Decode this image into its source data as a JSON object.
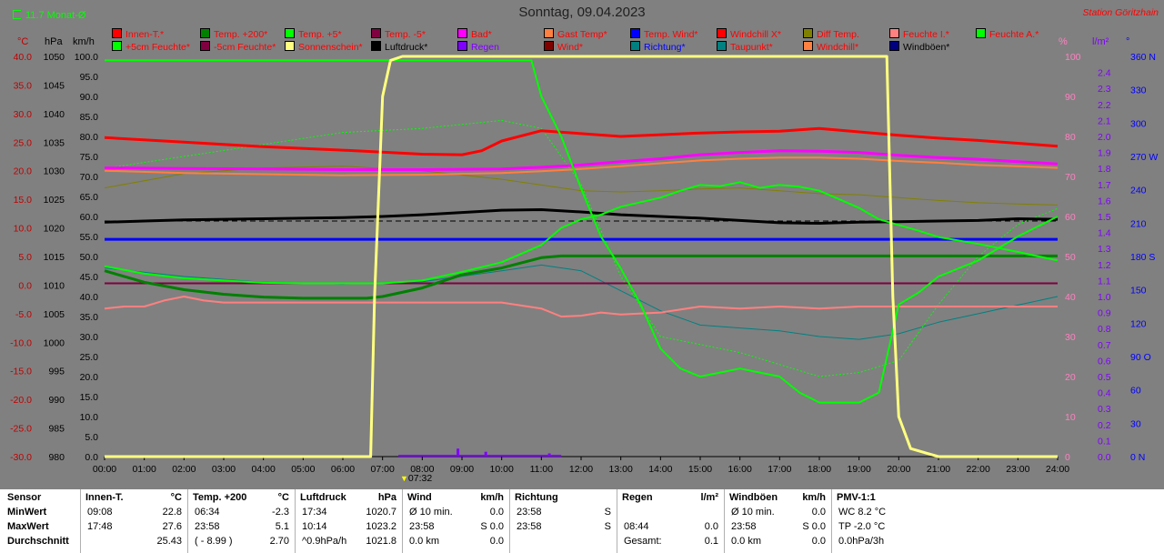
{
  "header": {
    "title": "Sonntag, 09.04.2023",
    "station": "Station Göritzhain",
    "monthly_avg": "11.7 Monat-Ø",
    "time_marker": "07:32"
  },
  "units": {
    "celsius": "°C",
    "hpa": "hPa",
    "kmh": "km/h",
    "percent": "%",
    "rain": "l/m²",
    "degree": "°"
  },
  "colors": {
    "background": "#808080",
    "red": "#ff0000",
    "dark_green": "#008000",
    "green": "#00ff00",
    "maroon": "#800040",
    "magenta": "#ff00ff",
    "orange": "#ff8040",
    "blue": "#0000ff",
    "olive": "#808000",
    "pink": "#ff8080",
    "yellow_sun": "#ffff80",
    "black": "#000000",
    "purple": "#8000ff",
    "teal": "#008080",
    "dark_red": "#800000",
    "navy": "#000080"
  },
  "legend": [
    {
      "label": "Innen-T.*",
      "color": "#ff0000",
      "text_color": "#ff0000"
    },
    {
      "label": "Temp. +200*",
      "color": "#008000",
      "text_color": "#ff0000"
    },
    {
      "label": "Temp. +5*",
      "color": "#00ff00",
      "text_color": "#ff0000"
    },
    {
      "label": "Temp. -5*",
      "color": "#800040",
      "text_color": "#ff0000"
    },
    {
      "label": "Bad*",
      "color": "#ff00ff",
      "text_color": "#ff0000"
    },
    {
      "label": "Gast Temp*",
      "color": "#ff8040",
      "text_color": "#ff0000"
    },
    {
      "label": "Temp. Wind*",
      "color": "#0000ff",
      "text_color": "#ff0000"
    },
    {
      "label": "Windchill X*",
      "color": "#ff0000",
      "text_color": "#ff0000"
    },
    {
      "label": "Diff Temp.",
      "color": "#808000",
      "text_color": "#ff0000"
    },
    {
      "label": "Feuchte I.*",
      "color": "#ff8080",
      "text_color": "#ff0000"
    },
    {
      "label": "Feuchte A.*",
      "color": "#00ff00",
      "text_color": "#ff0000"
    },
    {
      "label": "+5cm Feuchte*",
      "color": "#00ff00",
      "text_color": "#ff0000"
    },
    {
      "label": "-5cm Feuchte*",
      "color": "#800040",
      "text_color": "#ff0000"
    },
    {
      "label": "Sonnenschein*",
      "color": "#ffff80",
      "text_color": "#ff0000"
    },
    {
      "label": "Luftdruck*",
      "color": "#000000",
      "text_color": "#000000"
    },
    {
      "label": "Regen",
      "color": "#8000ff",
      "text_color": "#8000ff"
    },
    {
      "label": "Wind*",
      "color": "#800000",
      "text_color": "#ff0000"
    },
    {
      "label": "Richtung*",
      "color": "#008080",
      "text_color": "#0000ff"
    },
    {
      "label": "Taupunkt*",
      "color": "#008080",
      "text_color": "#ff0000"
    },
    {
      "label": "Windchill*",
      "color": "#ff8040",
      "text_color": "#ff0000"
    },
    {
      "label": "Windböen*",
      "color": "#000080",
      "text_color": "#000000"
    }
  ],
  "chart_data": {
    "type": "line",
    "title": "Sonntag, 09.04.2023",
    "x_ticks": [
      "00:00",
      "01:00",
      "02:00",
      "03:00",
      "04:00",
      "05:00",
      "06:00",
      "07:00",
      "08:00",
      "09:00",
      "10:00",
      "11:00",
      "12:00",
      "13:00",
      "14:00",
      "15:00",
      "16:00",
      "17:00",
      "18:00",
      "19:00",
      "20:00",
      "21:00",
      "22:00",
      "23:00",
      "24:00"
    ],
    "xlim": [
      0,
      24
    ],
    "axes": {
      "temp_c": {
        "label": "°C",
        "range": [
          -30,
          40
        ],
        "ticks": [
          "40.0",
          "35.0",
          "30.0",
          "25.0",
          "20.0",
          "15.0",
          "10.0",
          "5.0",
          "0.0",
          "-5.0",
          "-10.0",
          "-15.0",
          "-20.0",
          "-25.0",
          "-30.0"
        ]
      },
      "pressure_hpa": {
        "label": "hPa",
        "range": [
          980,
          1050
        ],
        "ticks": [
          "1050",
          "1045",
          "1040",
          "1035",
          "1030",
          "1025",
          "1020",
          "1015",
          "1010",
          "1005",
          "1000",
          "995",
          "990",
          "985",
          "980"
        ]
      },
      "wind_kmh": {
        "label": "km/h",
        "range": [
          0,
          100
        ],
        "ticks": [
          "100.0",
          "95.0",
          "90.0",
          "85.0",
          "80.0",
          "75.0",
          "70.0",
          "65.0",
          "60.0",
          "55.0",
          "50.0",
          "45.0",
          "40.0",
          "35.0",
          "30.0",
          "25.0",
          "20.0",
          "15.0",
          "10.0",
          "5.0",
          "0.0"
        ]
      },
      "humidity_pct": {
        "label": "%",
        "range": [
          0,
          100
        ],
        "ticks": [
          "100",
          "90",
          "80",
          "70",
          "60",
          "50",
          "40",
          "30",
          "20",
          "10",
          "0"
        ]
      },
      "rain_lm2": {
        "label": "l/m²",
        "range": [
          0,
          2.5
        ],
        "ticks": [
          "2.4",
          "2.3",
          "2.2",
          "2.1",
          "2.0",
          "1.9",
          "1.8",
          "1.7",
          "1.6",
          "1.5",
          "1.4",
          "1.3",
          "1.2",
          "1.1",
          "1.0",
          "0.9",
          "0.8",
          "0.7",
          "0.6",
          "0.5",
          "0.4",
          "0.3",
          "0.2",
          "0.1",
          "0.0"
        ]
      },
      "direction_deg": {
        "label": "°",
        "range": [
          0,
          360
        ],
        "ticks": [
          "360 N",
          "330",
          "300",
          "270 W",
          "240",
          "210",
          "180 S",
          "150",
          "120",
          "90 O",
          "60",
          "30",
          "0 N"
        ]
      }
    },
    "series": [
      {
        "name": "Innen-T.*",
        "axis": "temp_c",
        "color": "#ff0000",
        "width": 3,
        "x": [
          0,
          2,
          4,
          6,
          8,
          9,
          9.5,
          10,
          11,
          12,
          13,
          14,
          15,
          16,
          17,
          18,
          19,
          20,
          21,
          22,
          23,
          24
        ],
        "y": [
          25.8,
          25.0,
          24.2,
          23.6,
          22.9,
          22.8,
          23.5,
          25.2,
          27.0,
          26.5,
          26.0,
          26.3,
          26.6,
          26.8,
          26.9,
          27.4,
          26.8,
          26.2,
          25.7,
          25.3,
          24.8,
          24.3
        ]
      },
      {
        "name": "Temp. +200*",
        "axis": "temp_c",
        "color": "#008000",
        "width": 3,
        "x": [
          0,
          1,
          2,
          3,
          4,
          5,
          6,
          6.6,
          7,
          8,
          9,
          10,
          11,
          11.5,
          12,
          24
        ],
        "y": [
          2.5,
          0.5,
          -0.8,
          -1.6,
          -2.1,
          -2.3,
          -2.3,
          -2.3,
          -2.0,
          -0.5,
          1.8,
          3.0,
          4.8,
          5.1,
          5.1,
          5.1
        ]
      },
      {
        "name": "Temp. +5*",
        "axis": "temp_c",
        "color": "#00ff00",
        "width": 2,
        "x": [
          0,
          1,
          2,
          3,
          4,
          5,
          6,
          7,
          8,
          9,
          10,
          11,
          11.5,
          12,
          12.5,
          13,
          13.5,
          14,
          14.5,
          15,
          15.5,
          16,
          16.5,
          17,
          17.5,
          18,
          18.5,
          19,
          19.5,
          20,
          20.5,
          21,
          22,
          23,
          24
        ],
        "y": [
          3.3,
          2.0,
          1.2,
          0.8,
          0.4,
          0.3,
          0.3,
          0.3,
          0.8,
          2.3,
          4.0,
          7.0,
          10.0,
          11.5,
          12.3,
          13.7,
          14.5,
          15.3,
          16.5,
          17.5,
          17.3,
          18.0,
          17.0,
          17.5,
          17.2,
          16.5,
          15.0,
          13.5,
          11.5,
          10.5,
          9.5,
          8.4,
          7.2,
          5.8,
          4.3
        ]
      },
      {
        "name": "Temp. -5*",
        "axis": "temp_c",
        "color": "#800040",
        "width": 2,
        "x": [
          0,
          24
        ],
        "y": [
          0.3,
          0.3
        ]
      },
      {
        "name": "Bad*",
        "axis": "temp_c",
        "color": "#ff00ff",
        "width": 3,
        "x": [
          0,
          2,
          4,
          6,
          8,
          10,
          11,
          12,
          13,
          14,
          15,
          16,
          17,
          18,
          19,
          20,
          21,
          22,
          23,
          24
        ],
        "y": [
          20.5,
          20.4,
          20.3,
          20.2,
          20.2,
          20.3,
          20.6,
          21.0,
          21.6,
          22.1,
          22.8,
          23.2,
          23.5,
          23.4,
          23.2,
          22.7,
          22.3,
          22.0,
          21.6,
          21.2
        ]
      },
      {
        "name": "Gast Temp*",
        "axis": "temp_c",
        "color": "#ff8040",
        "width": 2,
        "x": [
          0,
          2,
          4,
          6,
          8,
          10,
          11,
          12,
          13,
          14,
          15,
          16,
          17,
          18,
          19,
          20,
          21,
          22,
          23,
          24
        ],
        "y": [
          20.0,
          19.6,
          19.4,
          19.2,
          19.3,
          19.6,
          19.9,
          20.3,
          20.8,
          21.3,
          21.8,
          22.1,
          22.3,
          22.3,
          22.1,
          21.7,
          21.4,
          21.0,
          20.8,
          20.5
        ]
      },
      {
        "name": "Temp. Wind*",
        "axis": "temp_c",
        "color": "#0000ff",
        "width": 3,
        "x": [
          0,
          24
        ],
        "y": [
          8.0,
          8.0
        ]
      },
      {
        "name": "Diff Temp.",
        "axis": "temp_c",
        "color": "#808000",
        "width": 1,
        "x": [
          0,
          2,
          4,
          6,
          8,
          10,
          11,
          12,
          13,
          14,
          15,
          16,
          17,
          18,
          19,
          20,
          21,
          22,
          23,
          24
        ],
        "y": [
          17.0,
          19.5,
          20.5,
          20.8,
          20.0,
          18.5,
          17.5,
          16.5,
          16.3,
          16.5,
          16.8,
          17.0,
          16.5,
          16.0,
          15.8,
          15.3,
          14.8,
          14.4,
          14.2,
          14.0
        ]
      },
      {
        "name": "Feuchte I.*",
        "axis": "humidity_pct",
        "color": "#ff8080",
        "width": 2,
        "x": [
          0,
          0.5,
          1,
          1.5,
          2,
          2.5,
          3,
          5,
          7,
          9,
          10,
          11,
          11.5,
          12,
          12.5,
          13,
          14,
          15,
          16,
          17,
          18,
          19,
          20,
          21,
          22,
          23,
          24
        ],
        "y": [
          37,
          37.5,
          37.5,
          39,
          40,
          39,
          38.5,
          38.5,
          38.5,
          38.5,
          38.5,
          37,
          35,
          35.2,
          36,
          35.5,
          36,
          37.5,
          37,
          37.5,
          37,
          37.5,
          37.5,
          37.5,
          37.5,
          37.5,
          37.5
        ]
      },
      {
        "name": "Feuchte A.*",
        "axis": "humidity_pct",
        "color": "#00ff00",
        "width": 2,
        "x": [
          0,
          6,
          7,
          8,
          9,
          10,
          10.75,
          11,
          11.5,
          12,
          12.5,
          13,
          13.5,
          14,
          14.5,
          15,
          15.5,
          16,
          16.5,
          17,
          17.5,
          18,
          18.5,
          19,
          19.5,
          20,
          20.5,
          21,
          22,
          23,
          24
        ],
        "y": [
          99,
          99,
          99,
          99,
          99,
          99,
          99,
          90,
          80,
          67,
          55,
          47,
          38,
          27,
          22,
          20,
          21,
          22,
          21,
          20,
          16,
          13.5,
          13.5,
          13.5,
          16,
          38,
          41,
          45,
          49,
          55,
          60
        ]
      },
      {
        "name": "+5cm Feuchte*",
        "axis": "humidity_pct",
        "color": "#00ff00",
        "width": 1,
        "dash": "2,2",
        "x": [
          0,
          2,
          4,
          6,
          8,
          9,
          10,
          11,
          12,
          13,
          14,
          15,
          16,
          17,
          18,
          19,
          20,
          21,
          22,
          23,
          24
        ],
        "y": [
          72,
          75,
          78,
          81,
          82,
          83,
          84,
          82,
          68,
          45,
          30,
          28,
          26,
          23,
          20,
          21,
          24,
          38,
          50,
          58,
          62
        ]
      },
      {
        "name": "Taupunkt*",
        "axis": "temp_c",
        "color": "#008080",
        "width": 1,
        "x": [
          0,
          2,
          4,
          6,
          8,
          10,
          11,
          12,
          13,
          14,
          15,
          16,
          17,
          18,
          19,
          20,
          21,
          22,
          23,
          24
        ],
        "y": [
          3.0,
          1.5,
          0.5,
          0.2,
          0.6,
          2.5,
          3.5,
          2.5,
          -1.0,
          -4.5,
          -7.0,
          -7.5,
          -8.0,
          -9.0,
          -9.5,
          -8.5,
          -6.5,
          -5.0,
          -3.5,
          -2.0
        ]
      },
      {
        "name": "Luftdruck*",
        "axis": "pressure_hpa",
        "color": "#000000",
        "width": 3,
        "x": [
          0,
          1,
          2,
          3,
          4,
          5,
          6,
          7,
          8,
          9,
          10,
          11,
          12,
          13,
          14,
          15,
          16,
          17,
          18,
          19,
          20,
          21,
          22,
          23,
          24
        ],
        "y": [
          1021.0,
          1021.2,
          1021.4,
          1021.5,
          1021.6,
          1021.7,
          1021.8,
          1022.0,
          1022.3,
          1022.7,
          1023.1,
          1023.2,
          1022.8,
          1022.3,
          1022.0,
          1021.7,
          1021.3,
          1020.9,
          1020.8,
          1021.0,
          1021.1,
          1021.2,
          1021.3,
          1021.6,
          1021.5
        ]
      },
      {
        "name": "Sonnenschein*",
        "axis": "humidity_pct",
        "color": "#ffff80",
        "width": 3,
        "x": [
          0,
          6.7,
          6.8,
          7.0,
          7.2,
          7.5,
          19.7,
          19.85,
          20.0,
          20.3,
          21,
          24
        ],
        "y": [
          0,
          0,
          40,
          90,
          99,
          100,
          100,
          40,
          10,
          2,
          0,
          0
        ]
      },
      {
        "name": "Regen",
        "axis": "rain_lm2",
        "color": "#8000ff",
        "type": "bar",
        "x": [
          8.9,
          9.6,
          11.2
        ],
        "y": [
          0.05,
          0.03,
          0.02
        ]
      }
    ],
    "reference_lines": [
      {
        "axis": "pressure_hpa",
        "value": 1021.2,
        "dash": "6,4",
        "color": "#000000"
      }
    ]
  },
  "stats": {
    "row_labels": [
      "Sensor",
      "MinWert",
      "MaxWert",
      "Durchschnitt"
    ],
    "columns": [
      {
        "title": "Innen-T.",
        "unit": "°C",
        "rows": [
          [
            "09:08",
            "22.8"
          ],
          [
            "17:48",
            "27.6"
          ],
          [
            "",
            "25.43"
          ]
        ]
      },
      {
        "title": "Temp. +200",
        "unit": "°C",
        "rows": [
          [
            "06:34",
            "-2.3"
          ],
          [
            "23:58",
            "5.1"
          ],
          [
            "( - 8.99 )",
            "2.70"
          ]
        ]
      },
      {
        "title": "Luftdruck",
        "unit": "hPa",
        "rows": [
          [
            "17:34",
            "1020.7"
          ],
          [
            "10:14",
            "1023.2"
          ],
          [
            "^0.9hPa/h",
            "1021.8"
          ]
        ]
      },
      {
        "title": "Wind",
        "unit": "km/h",
        "rows": [
          [
            "Ø 10 min.",
            "0.0"
          ],
          [
            "23:58",
            "S 0.0"
          ],
          [
            "0.0 km",
            "0.0"
          ]
        ]
      },
      {
        "title": "Richtung",
        "unit": "",
        "rows": [
          [
            "23:58",
            "S"
          ],
          [
            "23:58",
            "S"
          ],
          [
            "",
            ""
          ]
        ]
      },
      {
        "title": "Regen",
        "unit": "l/m²",
        "rows": [
          [
            "",
            ""
          ],
          [
            "08:44",
            "0.0"
          ],
          [
            "Gesamt:",
            "0.1"
          ]
        ]
      },
      {
        "title": "Windböen",
        "unit": "km/h",
        "rows": [
          [
            "Ø 10 min.",
            "0.0"
          ],
          [
            "23:58",
            "S 0.0"
          ],
          [
            "0.0 km",
            "0.0"
          ]
        ]
      },
      {
        "title": "PMV-1:1",
        "unit": "",
        "rows": [
          [
            "WC 8.2 °C",
            ""
          ],
          [
            "TP -2.0 °C",
            ""
          ],
          [
            "0.0hPa/3h",
            ""
          ]
        ]
      }
    ]
  }
}
